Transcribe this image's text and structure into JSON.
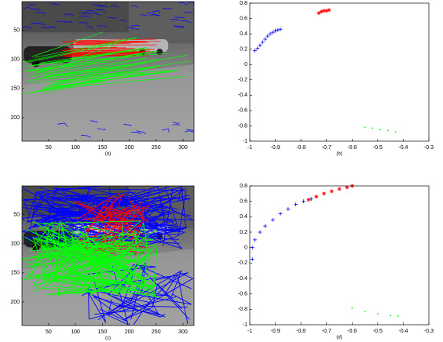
{
  "chart_data": [
    {
      "type": "image",
      "caption": "(a)",
      "xlim": [
        0.5,
        320.5
      ],
      "ylim": [
        240.5,
        0.5
      ],
      "xticks": [
        50,
        100,
        150,
        200,
        250,
        300
      ],
      "yticks": [
        50,
        100,
        150,
        200
      ]
    },
    {
      "type": "scatter",
      "caption": "(b)",
      "xlim": [
        -1,
        -0.3
      ],
      "ylim": [
        -1,
        0.8
      ],
      "xticks": [
        -1,
        -0.9,
        -0.8,
        -0.7,
        -0.6,
        -0.5,
        -0.4,
        -0.3
      ],
      "yticks": [
        -1,
        -0.8,
        -0.6,
        -0.4,
        -0.2,
        0,
        0.2,
        0.4,
        0.6,
        0.8
      ],
      "series": [
        {
          "color": "#0000ff",
          "marker": "plus",
          "x": [
            -0.98,
            -0.97,
            -0.96,
            -0.95,
            -0.94,
            -0.93,
            -0.92,
            -0.91,
            -0.9,
            -0.89,
            -0.88
          ],
          "values": [
            0.18,
            0.21,
            0.25,
            0.29,
            0.33,
            0.37,
            0.4,
            0.42,
            0.44,
            0.45,
            0.46
          ]
        },
        {
          "color": "#ff0000",
          "marker": "star",
          "x": [
            -0.73,
            -0.72,
            -0.71,
            -0.7,
            -0.69
          ],
          "values": [
            0.67,
            0.69,
            0.7,
            0.7,
            0.71
          ]
        },
        {
          "color": "#00ee00",
          "marker": "dot",
          "x": [
            -0.55,
            -0.52,
            -0.49,
            -0.46,
            -0.43
          ],
          "values": [
            -0.82,
            -0.83,
            -0.85,
            -0.86,
            -0.88
          ]
        }
      ]
    },
    {
      "type": "image",
      "caption": "(c)",
      "xlim": [
        0.5,
        320.5
      ],
      "ylim": [
        240.5,
        0.5
      ],
      "xticks": [
        50,
        100,
        150,
        200,
        250,
        300
      ],
      "yticks": [
        50,
        100,
        150,
        200
      ]
    },
    {
      "type": "scatter",
      "caption": "(d)",
      "xlim": [
        -1,
        -0.3
      ],
      "ylim": [
        -1,
        0.8
      ],
      "xticks": [
        -1,
        -0.9,
        -0.8,
        -0.7,
        -0.6,
        -0.5,
        -0.4,
        -0.3
      ],
      "yticks": [
        -1,
        -0.8,
        -0.6,
        -0.4,
        -0.2,
        0,
        0.2,
        0.4,
        0.6,
        0.8
      ],
      "series": [
        {
          "color": "#0000ff",
          "marker": "plus",
          "x": [
            -0.99,
            -0.99,
            -0.98,
            -0.96,
            -0.94,
            -0.91,
            -0.88,
            -0.85,
            -0.82,
            -0.79,
            -0.76
          ],
          "values": [
            -0.15,
            0,
            0.1,
            0.2,
            0.28,
            0.36,
            0.44,
            0.5,
            0.56,
            0.6,
            0.63
          ]
        },
        {
          "color": "#ff0000",
          "marker": "star",
          "x": [
            -0.77,
            -0.74,
            -0.71,
            -0.68,
            -0.65,
            -0.62,
            -0.6
          ],
          "values": [
            0.62,
            0.66,
            0.7,
            0.73,
            0.76,
            0.78,
            0.8
          ]
        },
        {
          "color": "#00ee00",
          "marker": "dot",
          "x": [
            -0.6,
            -0.55,
            -0.5,
            -0.45,
            -0.42
          ],
          "values": [
            -0.78,
            -0.83,
            -0.86,
            -0.88,
            -0.89
          ]
        }
      ]
    }
  ]
}
